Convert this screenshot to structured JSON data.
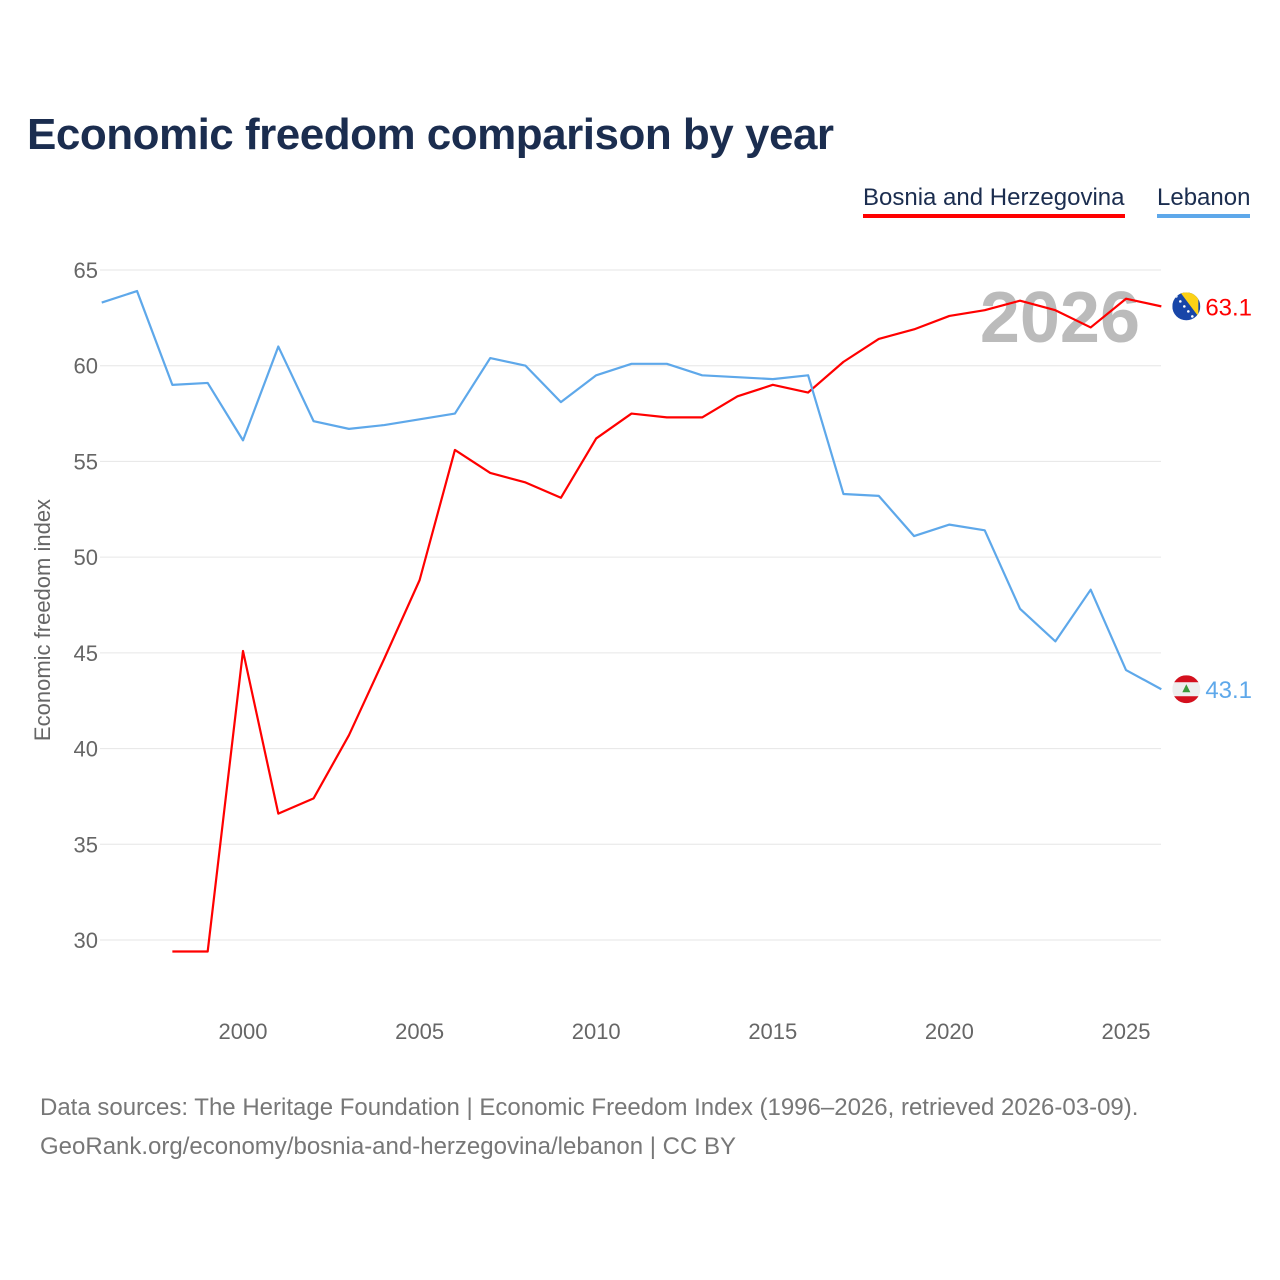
{
  "title": "Economic freedom comparison by year",
  "source_line1": "Data sources: The Heritage Foundation | Economic Freedom Index (1996–2026, retrieved 2026-03-09).",
  "source_line2": "GeoRank.org/economy/bosnia-and-herzegovina/lebanon | CC BY",
  "chart_data": {
    "type": "line",
    "title": "Economic freedom comparison by year",
    "ylabel": "Economic freedom index",
    "xlabel": "",
    "xlim": [
      1996,
      2026
    ],
    "ylim": [
      26.5,
      66.5
    ],
    "yticks": [
      30,
      35,
      40,
      45,
      50,
      55,
      60,
      65
    ],
    "xticks": [
      2000,
      2005,
      2010,
      2015,
      2020,
      2025
    ],
    "grid": true,
    "legend_position": "top-right",
    "year_label": "2026",
    "series": [
      {
        "name": "Bosnia and Herzegovina",
        "color": "#ff0000",
        "flag": "bosnia-flag",
        "end_label": "63.1",
        "x": [
          1998,
          1999,
          2000,
          2001,
          2002,
          2003,
          2004,
          2005,
          2006,
          2007,
          2008,
          2009,
          2010,
          2011,
          2012,
          2013,
          2014,
          2015,
          2016,
          2017,
          2018,
          2019,
          2020,
          2021,
          2022,
          2023,
          2024,
          2025,
          2026
        ],
        "values": [
          29.4,
          29.4,
          45.1,
          36.6,
          37.4,
          40.7,
          44.7,
          48.8,
          55.6,
          54.4,
          53.9,
          53.1,
          56.2,
          57.5,
          57.3,
          57.3,
          58.4,
          59.0,
          58.6,
          60.2,
          61.4,
          61.9,
          62.6,
          62.9,
          63.4,
          62.9,
          62.0,
          63.5,
          63.1
        ]
      },
      {
        "name": "Lebanon",
        "color": "#5ea8ea",
        "flag": "lebanon-flag",
        "end_label": "43.1",
        "x": [
          1996,
          1997,
          1998,
          1999,
          2000,
          2001,
          2002,
          2003,
          2004,
          2005,
          2006,
          2007,
          2008,
          2009,
          2010,
          2011,
          2012,
          2013,
          2014,
          2015,
          2016,
          2017,
          2018,
          2019,
          2020,
          2021,
          2022,
          2023,
          2024,
          2025,
          2026
        ],
        "values": [
          63.3,
          63.9,
          59.0,
          59.1,
          56.1,
          61.0,
          57.1,
          56.7,
          56.9,
          57.2,
          57.5,
          60.4,
          60.0,
          58.1,
          59.5,
          60.1,
          60.1,
          59.5,
          59.4,
          59.3,
          59.5,
          53.3,
          53.2,
          51.1,
          51.7,
          51.4,
          47.3,
          45.6,
          48.3,
          44.1,
          43.1
        ]
      }
    ]
  }
}
